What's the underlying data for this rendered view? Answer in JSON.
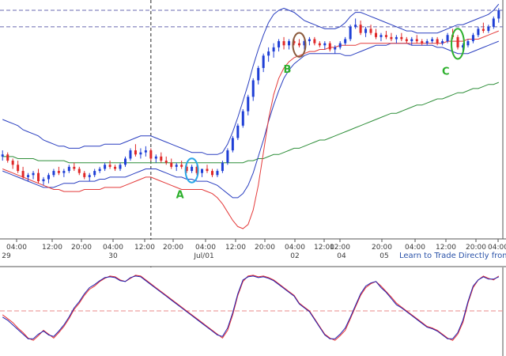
{
  "chart_data": [
    {
      "type": "candlestick",
      "title": "",
      "indicators": [
        "Bollinger Bands",
        "long moving average",
        "envelope"
      ],
      "x_tick_labels": [
        "04:00",
        "12:00",
        "20:00",
        "04:00",
        "12:00",
        "20:00",
        "04:00",
        "12:00",
        "20:00",
        "04:00",
        "12:00",
        "12:00",
        "20:00",
        "04:00",
        "12:00",
        "20:00",
        "04:00"
      ],
      "date_labels": [
        "29",
        "30",
        "Jul/01",
        "02",
        "04",
        "05"
      ],
      "ohlc": [
        [
          0.8,
          0.83,
          0.78,
          0.81
        ],
        [
          0.81,
          0.82,
          0.77,
          0.78
        ],
        [
          0.78,
          0.79,
          0.74,
          0.76
        ],
        [
          0.76,
          0.78,
          0.72,
          0.73
        ],
        [
          0.73,
          0.75,
          0.69,
          0.7
        ],
        [
          0.7,
          0.72,
          0.68,
          0.71
        ],
        [
          0.71,
          0.73,
          0.69,
          0.72
        ],
        [
          0.72,
          0.74,
          0.67,
          0.68
        ],
        [
          0.68,
          0.7,
          0.66,
          0.69
        ],
        [
          0.69,
          0.72,
          0.67,
          0.71
        ],
        [
          0.71,
          0.74,
          0.7,
          0.73
        ],
        [
          0.73,
          0.75,
          0.71,
          0.72
        ],
        [
          0.72,
          0.74,
          0.7,
          0.73
        ],
        [
          0.73,
          0.76,
          0.72,
          0.75
        ],
        [
          0.75,
          0.77,
          0.73,
          0.74
        ],
        [
          0.74,
          0.75,
          0.71,
          0.72
        ],
        [
          0.72,
          0.73,
          0.69,
          0.7
        ],
        [
          0.7,
          0.72,
          0.68,
          0.71
        ],
        [
          0.71,
          0.74,
          0.7,
          0.73
        ],
        [
          0.73,
          0.75,
          0.72,
          0.74
        ],
        [
          0.74,
          0.77,
          0.73,
          0.76
        ],
        [
          0.76,
          0.78,
          0.74,
          0.75
        ],
        [
          0.75,
          0.76,
          0.73,
          0.74
        ],
        [
          0.74,
          0.77,
          0.73,
          0.76
        ],
        [
          0.76,
          0.8,
          0.75,
          0.79
        ],
        [
          0.79,
          0.84,
          0.78,
          0.83
        ],
        [
          0.83,
          0.86,
          0.8,
          0.81
        ],
        [
          0.81,
          0.84,
          0.79,
          0.82
        ],
        [
          0.82,
          0.85,
          0.8,
          0.83
        ],
        [
          0.83,
          0.84,
          0.78,
          0.79
        ],
        [
          0.79,
          0.81,
          0.77,
          0.8
        ],
        [
          0.8,
          0.82,
          0.77,
          0.78
        ],
        [
          0.78,
          0.8,
          0.76,
          0.77
        ],
        [
          0.77,
          0.79,
          0.74,
          0.75
        ],
        [
          0.75,
          0.77,
          0.73,
          0.76
        ],
        [
          0.76,
          0.78,
          0.74,
          0.75
        ],
        [
          0.75,
          0.77,
          0.72,
          0.73
        ],
        [
          0.73,
          0.76,
          0.72,
          0.75
        ],
        [
          0.75,
          0.77,
          0.71,
          0.72
        ],
        [
          0.72,
          0.74,
          0.7,
          0.74
        ],
        [
          0.74,
          0.76,
          0.72,
          0.73
        ],
        [
          0.73,
          0.74,
          0.7,
          0.71
        ],
        [
          0.71,
          0.74,
          0.7,
          0.73
        ],
        [
          0.73,
          0.78,
          0.72,
          0.77
        ],
        [
          0.77,
          0.84,
          0.76,
          0.83
        ],
        [
          0.83,
          0.9,
          0.82,
          0.89
        ],
        [
          0.89,
          0.96,
          0.88,
          0.95
        ],
        [
          0.95,
          1.03,
          0.94,
          1.02
        ],
        [
          1.02,
          1.1,
          1.0,
          1.09
        ],
        [
          1.09,
          1.18,
          1.07,
          1.17
        ],
        [
          1.17,
          1.24,
          1.15,
          1.23
        ],
        [
          1.23,
          1.3,
          1.21,
          1.29
        ],
        [
          1.29,
          1.33,
          1.26,
          1.31
        ],
        [
          1.31,
          1.35,
          1.28,
          1.33
        ],
        [
          1.33,
          1.37,
          1.31,
          1.36
        ],
        [
          1.36,
          1.38,
          1.32,
          1.34
        ],
        [
          1.34,
          1.37,
          1.32,
          1.36
        ],
        [
          1.36,
          1.38,
          1.34,
          1.35
        ],
        [
          1.35,
          1.37,
          1.33,
          1.34
        ],
        [
          1.34,
          1.37,
          1.32,
          1.36
        ],
        [
          1.36,
          1.38,
          1.34,
          1.37
        ],
        [
          1.37,
          1.38,
          1.34,
          1.35
        ],
        [
          1.35,
          1.36,
          1.33,
          1.34
        ],
        [
          1.34,
          1.36,
          1.32,
          1.35
        ],
        [
          1.35,
          1.36,
          1.31,
          1.32
        ],
        [
          1.32,
          1.34,
          1.3,
          1.33
        ],
        [
          1.33,
          1.36,
          1.32,
          1.35
        ],
        [
          1.35,
          1.38,
          1.34,
          1.37
        ],
        [
          1.37,
          1.44,
          1.36,
          1.43
        ],
        [
          1.43,
          1.47,
          1.42,
          1.44
        ],
        [
          1.44,
          1.46,
          1.39,
          1.4
        ],
        [
          1.4,
          1.43,
          1.38,
          1.42
        ],
        [
          1.42,
          1.44,
          1.39,
          1.4
        ],
        [
          1.4,
          1.42,
          1.37,
          1.38
        ],
        [
          1.38,
          1.4,
          1.36,
          1.39
        ],
        [
          1.39,
          1.41,
          1.37,
          1.38
        ],
        [
          1.38,
          1.4,
          1.36,
          1.37
        ],
        [
          1.37,
          1.39,
          1.35,
          1.38
        ],
        [
          1.38,
          1.4,
          1.36,
          1.37
        ],
        [
          1.37,
          1.38,
          1.35,
          1.36
        ],
        [
          1.36,
          1.38,
          1.34,
          1.37
        ],
        [
          1.37,
          1.39,
          1.35,
          1.36
        ],
        [
          1.36,
          1.37,
          1.34,
          1.35
        ],
        [
          1.35,
          1.37,
          1.34,
          1.36
        ],
        [
          1.36,
          1.38,
          1.35,
          1.37
        ],
        [
          1.37,
          1.38,
          1.34,
          1.35
        ],
        [
          1.35,
          1.37,
          1.34,
          1.36
        ],
        [
          1.36,
          1.4,
          1.35,
          1.39
        ],
        [
          1.39,
          1.42,
          1.37,
          1.38
        ],
        [
          1.38,
          1.39,
          1.32,
          1.33
        ],
        [
          1.33,
          1.35,
          1.31,
          1.34
        ],
        [
          1.34,
          1.37,
          1.33,
          1.36
        ],
        [
          1.36,
          1.4,
          1.35,
          1.39
        ],
        [
          1.39,
          1.43,
          1.38,
          1.42
        ],
        [
          1.42,
          1.45,
          1.4,
          1.41
        ],
        [
          1.41,
          1.44,
          1.4,
          1.43
        ],
        [
          1.43,
          1.48,
          1.42,
          1.47
        ],
        [
          1.47,
          1.52,
          1.45,
          1.51
        ]
      ],
      "bb_upper": [
        0.98,
        0.97,
        0.96,
        0.95,
        0.93,
        0.92,
        0.91,
        0.9,
        0.88,
        0.87,
        0.86,
        0.85,
        0.85,
        0.84,
        0.84,
        0.84,
        0.85,
        0.85,
        0.85,
        0.85,
        0.86,
        0.86,
        0.86,
        0.86,
        0.87,
        0.88,
        0.89,
        0.9,
        0.9,
        0.9,
        0.89,
        0.88,
        0.87,
        0.86,
        0.85,
        0.84,
        0.83,
        0.82,
        0.82,
        0.82,
        0.81,
        0.81,
        0.81,
        0.82,
        0.86,
        0.92,
        0.99,
        1.07,
        1.15,
        1.24,
        1.32,
        1.39,
        1.45,
        1.49,
        1.51,
        1.52,
        1.51,
        1.5,
        1.48,
        1.46,
        1.45,
        1.44,
        1.43,
        1.42,
        1.42,
        1.42,
        1.43,
        1.45,
        1.48,
        1.5,
        1.5,
        1.49,
        1.48,
        1.47,
        1.46,
        1.45,
        1.44,
        1.43,
        1.42,
        1.41,
        1.41,
        1.4,
        1.4,
        1.4,
        1.4,
        1.4,
        1.41,
        1.42,
        1.43,
        1.44,
        1.44,
        1.45,
        1.46,
        1.47,
        1.48,
        1.49,
        1.51,
        1.54
      ],
      "bb_lower": [
        0.73,
        0.72,
        0.71,
        0.7,
        0.69,
        0.68,
        0.67,
        0.66,
        0.65,
        0.65,
        0.65,
        0.66,
        0.67,
        0.67,
        0.67,
        0.68,
        0.68,
        0.68,
        0.68,
        0.69,
        0.69,
        0.7,
        0.7,
        0.7,
        0.7,
        0.71,
        0.72,
        0.73,
        0.74,
        0.74,
        0.74,
        0.73,
        0.72,
        0.71,
        0.7,
        0.7,
        0.69,
        0.69,
        0.68,
        0.68,
        0.68,
        0.67,
        0.66,
        0.64,
        0.62,
        0.6,
        0.6,
        0.62,
        0.66,
        0.72,
        0.8,
        0.88,
        0.97,
        1.05,
        1.12,
        1.18,
        1.22,
        1.25,
        1.27,
        1.29,
        1.3,
        1.3,
        1.3,
        1.3,
        1.3,
        1.3,
        1.3,
        1.29,
        1.29,
        1.3,
        1.31,
        1.32,
        1.33,
        1.34,
        1.34,
        1.34,
        1.35,
        1.35,
        1.35,
        1.35,
        1.34,
        1.34,
        1.34,
        1.34,
        1.34,
        1.33,
        1.33,
        1.32,
        1.31,
        1.3,
        1.3,
        1.3,
        1.31,
        1.32,
        1.33,
        1.34,
        1.35,
        1.36
      ],
      "envelope": [
        0.74,
        0.73,
        0.72,
        0.71,
        0.7,
        0.69,
        0.68,
        0.67,
        0.66,
        0.65,
        0.64,
        0.64,
        0.63,
        0.63,
        0.63,
        0.63,
        0.64,
        0.64,
        0.64,
        0.64,
        0.65,
        0.65,
        0.65,
        0.65,
        0.66,
        0.67,
        0.68,
        0.69,
        0.7,
        0.7,
        0.69,
        0.68,
        0.67,
        0.66,
        0.65,
        0.64,
        0.64,
        0.64,
        0.64,
        0.64,
        0.63,
        0.62,
        0.6,
        0.57,
        0.53,
        0.49,
        0.46,
        0.45,
        0.47,
        0.54,
        0.66,
        0.82,
        0.98,
        1.1,
        1.18,
        1.23,
        1.26,
        1.28,
        1.29,
        1.3,
        1.31,
        1.31,
        1.32,
        1.32,
        1.33,
        1.33,
        1.34,
        1.34,
        1.34,
        1.34,
        1.35,
        1.35,
        1.35,
        1.35,
        1.35,
        1.35,
        1.35,
        1.35,
        1.35,
        1.35,
        1.35,
        1.35,
        1.35,
        1.35,
        1.35,
        1.35,
        1.35,
        1.36,
        1.36,
        1.36,
        1.36,
        1.37,
        1.37,
        1.37,
        1.38,
        1.39,
        1.4,
        1.41
      ],
      "long_ma": [
        0.8,
        0.8,
        0.8,
        0.79,
        0.79,
        0.79,
        0.79,
        0.78,
        0.78,
        0.78,
        0.78,
        0.78,
        0.78,
        0.77,
        0.77,
        0.77,
        0.77,
        0.77,
        0.77,
        0.77,
        0.77,
        0.77,
        0.77,
        0.77,
        0.77,
        0.77,
        0.77,
        0.77,
        0.77,
        0.77,
        0.77,
        0.77,
        0.77,
        0.77,
        0.77,
        0.77,
        0.77,
        0.77,
        0.77,
        0.77,
        0.77,
        0.77,
        0.77,
        0.77,
        0.77,
        0.77,
        0.77,
        0.77,
        0.78,
        0.78,
        0.79,
        0.79,
        0.8,
        0.81,
        0.81,
        0.82,
        0.83,
        0.84,
        0.84,
        0.85,
        0.86,
        0.87,
        0.88,
        0.88,
        0.89,
        0.9,
        0.91,
        0.92,
        0.93,
        0.94,
        0.95,
        0.96,
        0.97,
        0.98,
        0.99,
        1.0,
        1.01,
        1.01,
        1.02,
        1.03,
        1.04,
        1.05,
        1.05,
        1.06,
        1.07,
        1.08,
        1.08,
        1.09,
        1.1,
        1.11,
        1.11,
        1.12,
        1.13,
        1.13,
        1.14,
        1.15,
        1.15,
        1.16
      ],
      "ylim": [
        0.4,
        1.56
      ],
      "h_levels": [
        1.51,
        1.43
      ],
      "v_marker_index": 29,
      "annotations": [
        {
          "label": "A",
          "bar_index": 37,
          "color": "#29a6e6"
        },
        {
          "label": "B",
          "bar_index": 58,
          "color": "#8b5a3c"
        },
        {
          "label": "C",
          "bar_index": 89,
          "color": "#2db02d"
        }
      ],
      "bull_color": "#1f3fd6",
      "bear_color": "#e02828"
    },
    {
      "type": "line",
      "title": "",
      "x_tick_labels": [],
      "ylim": [
        0,
        100
      ],
      "h_levels": [
        50
      ],
      "series": [
        {
          "color": "#e83030",
          "values": [
            45,
            40,
            35,
            28,
            22,
            15,
            12,
            18,
            25,
            20,
            15,
            22,
            30,
            40,
            52,
            60,
            70,
            78,
            82,
            88,
            92,
            95,
            94,
            90,
            88,
            92,
            96,
            95,
            90,
            85,
            80,
            75,
            70,
            65,
            60,
            55,
            50,
            45,
            40,
            35,
            30,
            25,
            20,
            15,
            25,
            45,
            70,
            88,
            95,
            96,
            94,
            95,
            93,
            90,
            85,
            80,
            75,
            70,
            60,
            55,
            50,
            40,
            30,
            20,
            15,
            12,
            18,
            25,
            40,
            55,
            70,
            80,
            85,
            88,
            82,
            75,
            68,
            60,
            55,
            50,
            45,
            40,
            35,
            30,
            28,
            25,
            20,
            15,
            12,
            20,
            35,
            60,
            80,
            90,
            95,
            92,
            90,
            95
          ]
        },
        {
          "color": "#2020b0",
          "values": [
            42,
            38,
            32,
            26,
            20,
            14,
            14,
            20,
            24,
            19,
            17,
            24,
            32,
            42,
            54,
            62,
            72,
            80,
            84,
            89,
            93,
            94,
            93,
            89,
            88,
            93,
            95,
            94,
            89,
            84,
            79,
            74,
            69,
            64,
            59,
            54,
            49,
            44,
            39,
            34,
            29,
            24,
            19,
            17,
            28,
            48,
            72,
            90,
            94,
            95,
            93,
            94,
            92,
            89,
            84,
            79,
            74,
            69,
            59,
            54,
            49,
            39,
            29,
            19,
            14,
            14,
            20,
            28,
            42,
            57,
            72,
            82,
            86,
            88,
            80,
            74,
            66,
            58,
            54,
            49,
            44,
            39,
            34,
            29,
            27,
            24,
            19,
            14,
            14,
            22,
            38,
            62,
            82,
            90,
            94,
            91,
            91,
            94
          ]
        }
      ]
    }
  ],
  "lower_ticks": [
    "04:00",
    "12:00",
    "20:00",
    "04:00",
    "12:00",
    "20:00",
    "04:00",
    "12:00",
    "20:00",
    "04:00",
    "12:00",
    "12:00",
    "20:00",
    "04:00",
    "12:00",
    "20:00",
    "04:00"
  ],
  "promo_link": "Learn to Trade Directly from Charts",
  "annotation_labels": {
    "a": "A",
    "b": "B",
    "c": "C"
  }
}
